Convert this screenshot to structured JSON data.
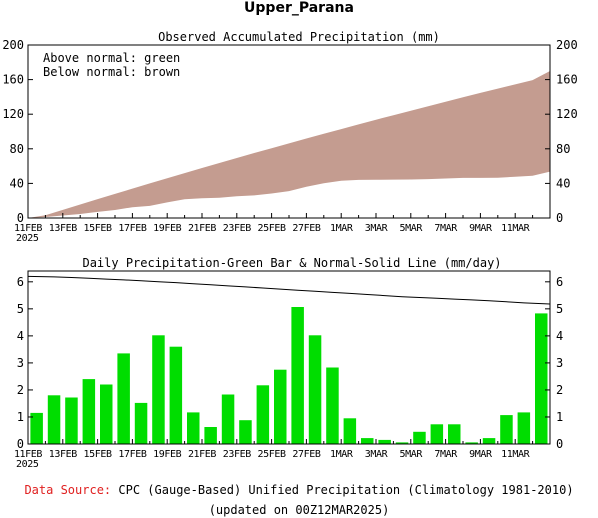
{
  "page_title": "Upper_Parana",
  "footer": {
    "source_label": "Data Source:",
    "source_text": "CPC (Gauge-Based) Unified Precipitation (Climatology 1981-2010)",
    "updated_text": "(updated on 00Z12MAR2025)"
  },
  "colors": {
    "accumulated_fill": "#c49c90",
    "bar_fill": "#00dd00",
    "normal_line": "#000000",
    "source_label": "#e02020"
  },
  "x_axis": {
    "tick_labels": [
      "11FEB",
      "13FEB",
      "15FEB",
      "17FEB",
      "19FEB",
      "21FEB",
      "23FEB",
      "25FEB",
      "27FEB",
      "1MAR",
      "3MAR",
      "5MAR",
      "7MAR",
      "9MAR",
      "11MAR"
    ],
    "year_label": "2025"
  },
  "chart_data": [
    {
      "type": "area",
      "title": "Observed Accumulated Precipitation (mm)",
      "legend_lines": [
        "Above normal: green",
        "Below normal: brown"
      ],
      "ylim": [
        0,
        200
      ],
      "yticks": [
        0,
        40,
        80,
        120,
        160,
        200
      ],
      "grid": false,
      "x": [
        "11FEB",
        "12FEB",
        "13FEB",
        "14FEB",
        "15FEB",
        "16FEB",
        "17FEB",
        "18FEB",
        "19FEB",
        "20FEB",
        "21FEB",
        "22FEB",
        "23FEB",
        "24FEB",
        "25FEB",
        "26FEB",
        "27FEB",
        "28FEB",
        "1MAR",
        "2MAR",
        "3MAR",
        "4MAR",
        "5MAR",
        "6MAR",
        "7MAR",
        "8MAR",
        "9MAR",
        "10MAR",
        "11MAR",
        "12MAR"
      ],
      "series": [
        {
          "name": "Observed",
          "values": [
            1.1,
            2.9,
            4.6,
            7.0,
            9.2,
            12.5,
            14.0,
            18.0,
            21.6,
            22.8,
            23.4,
            25.2,
            26.1,
            28.3,
            31.1,
            36.2,
            40.2,
            43.0,
            44.0,
            44.2,
            44.4,
            44.5,
            45.0,
            45.7,
            46.4,
            46.4,
            46.6,
            47.6,
            48.8,
            53.6
          ]
        },
        {
          "name": "Normal",
          "values": [
            3.1,
            9.4,
            15.6,
            21.8,
            27.9,
            34.0,
            40.0,
            46.0,
            51.9,
            57.8,
            63.6,
            69.4,
            75.1,
            80.7,
            86.3,
            91.9,
            97.4,
            102.8,
            108.2,
            113.6,
            118.9,
            124.1,
            129.3,
            134.5,
            139.6,
            144.6,
            149.6,
            154.5,
            159.4,
            170.0
          ]
        }
      ]
    },
    {
      "type": "bar",
      "title": "Daily Precipitation-Green Bar & Normal-Solid Line (mm/day)",
      "ylim": [
        0,
        6.4
      ],
      "yticks": [
        0,
        1,
        2,
        3,
        4,
        5,
        6
      ],
      "grid": false,
      "categories": [
        "11FEB",
        "12FEB",
        "13FEB",
        "14FEB",
        "15FEB",
        "16FEB",
        "17FEB",
        "18FEB",
        "19FEB",
        "20FEB",
        "21FEB",
        "22FEB",
        "23FEB",
        "24FEB",
        "25FEB",
        "26FEB",
        "27FEB",
        "28FEB",
        "1MAR",
        "2MAR",
        "3MAR",
        "4MAR",
        "5MAR",
        "6MAR",
        "7MAR",
        "8MAR",
        "9MAR",
        "10MAR",
        "11MAR",
        "12MAR"
      ],
      "series": [
        {
          "name": "Daily Precipitation",
          "values": [
            1.15,
            1.8,
            1.72,
            2.4,
            2.2,
            3.35,
            1.52,
            4.02,
            3.6,
            1.17,
            0.63,
            1.83,
            0.88,
            2.17,
            2.75,
            5.07,
            4.02,
            2.83,
            0.95,
            0.22,
            0.15,
            0.06,
            0.45,
            0.73,
            0.73,
            0.06,
            0.22,
            1.07,
            1.17,
            4.83
          ]
        },
        {
          "name": "Normal",
          "type": "line",
          "values": [
            6.2,
            6.18,
            6.16,
            6.13,
            6.1,
            6.07,
            6.04,
            6.0,
            5.97,
            5.93,
            5.89,
            5.85,
            5.81,
            5.77,
            5.73,
            5.69,
            5.65,
            5.61,
            5.57,
            5.53,
            5.49,
            5.45,
            5.42,
            5.39,
            5.36,
            5.33,
            5.3,
            5.26,
            5.22,
            5.18
          ]
        }
      ]
    }
  ]
}
